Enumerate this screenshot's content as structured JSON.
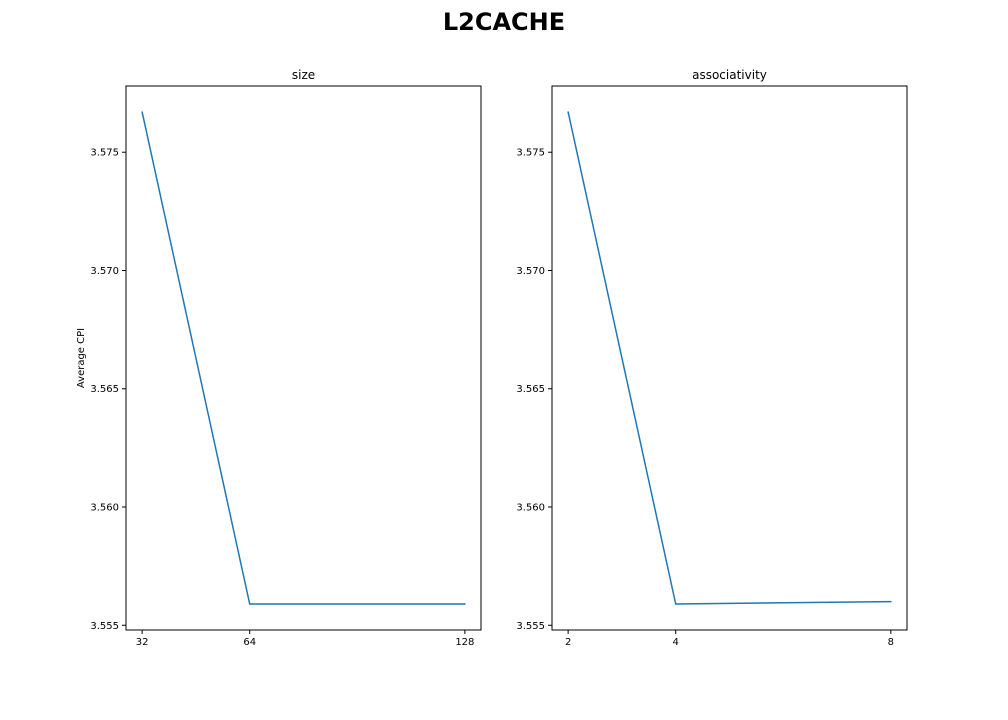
{
  "figure": {
    "suptitle": "L2CACHE"
  },
  "chart_data": [
    {
      "type": "line",
      "title": "size",
      "xlabel": "",
      "ylabel": "Average CPI",
      "x": [
        32,
        64,
        128
      ],
      "x_tick_labels": [
        "32",
        "64",
        "128"
      ],
      "ylim": [
        3.5548,
        3.5778
      ],
      "y_ticks": [
        3.555,
        3.56,
        3.565,
        3.57,
        3.575
      ],
      "y_tick_labels": [
        "3.555",
        "3.560",
        "3.565",
        "3.570",
        "3.575"
      ],
      "series": [
        {
          "values": [
            3.5767,
            3.5559,
            3.5559
          ],
          "color": "#1f77b4"
        }
      ],
      "grid": false
    },
    {
      "type": "line",
      "title": "associativity",
      "xlabel": "",
      "ylabel": "",
      "x": [
        2,
        4,
        8
      ],
      "x_tick_labels": [
        "2",
        "4",
        "8"
      ],
      "ylim": [
        3.5548,
        3.5778
      ],
      "y_ticks": [
        3.555,
        3.56,
        3.565,
        3.57,
        3.575
      ],
      "y_tick_labels": [
        "3.555",
        "3.560",
        "3.565",
        "3.570",
        "3.575"
      ],
      "series": [
        {
          "values": [
            3.5767,
            3.5559,
            3.556
          ],
          "color": "#1f77b4"
        }
      ],
      "grid": false
    }
  ]
}
